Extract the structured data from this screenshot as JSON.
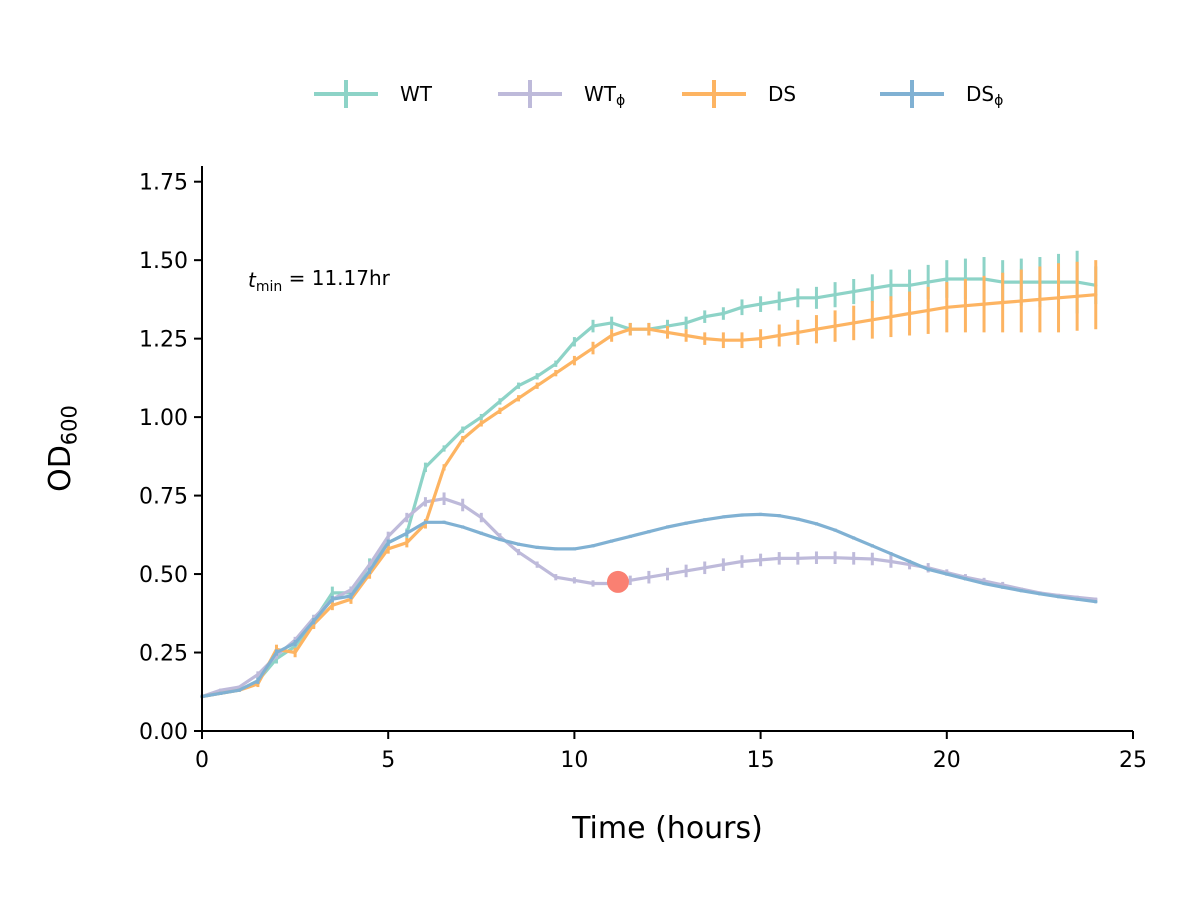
{
  "chart_data": {
    "type": "line",
    "xlabel": "Time (hours)",
    "ylabel": "OD",
    "ylabel_sub": "600",
    "xlim": [
      0,
      25
    ],
    "ylim": [
      0,
      1.8
    ],
    "xticks": [
      0,
      5,
      10,
      15,
      20,
      25
    ],
    "yticks": [
      0.0,
      0.25,
      0.5,
      0.75,
      1.0,
      1.25,
      1.5,
      1.75
    ],
    "xtick_labels": [
      "0",
      "5",
      "10",
      "15",
      "20",
      "25"
    ],
    "ytick_labels": [
      "0.00",
      "0.25",
      "0.50",
      "0.75",
      "1.00",
      "1.25",
      "1.50",
      "1.75"
    ],
    "grid": false,
    "legend_position": "top-center",
    "annotation": {
      "t": "t",
      "sub": "min",
      "rest": " = 11.17hr"
    },
    "marker": {
      "x": 11.17,
      "y": 0.475,
      "color": "#fa8072"
    },
    "series": [
      {
        "name": "WT",
        "sub": "",
        "color": "#8dd3c7",
        "x": [
          0,
          0.5,
          1,
          1.5,
          2,
          2.5,
          3,
          3.5,
          4,
          4.5,
          5,
          5.5,
          6,
          6.5,
          7,
          7.5,
          8,
          8.5,
          9,
          9.5,
          10,
          10.5,
          11,
          11.5,
          12,
          12.5,
          13,
          13.5,
          14,
          14.5,
          15,
          15.5,
          16,
          16.5,
          17,
          17.5,
          18,
          18.5,
          19,
          19.5,
          20,
          20.5,
          21,
          21.5,
          22,
          22.5,
          23,
          23.5,
          24
        ],
        "y": [
          0.11,
          0.12,
          0.13,
          0.16,
          0.23,
          0.27,
          0.35,
          0.44,
          0.44,
          0.53,
          0.6,
          0.63,
          0.84,
          0.9,
          0.96,
          1.0,
          1.05,
          1.1,
          1.13,
          1.17,
          1.24,
          1.29,
          1.3,
          1.28,
          1.28,
          1.29,
          1.3,
          1.32,
          1.33,
          1.35,
          1.36,
          1.37,
          1.38,
          1.38,
          1.39,
          1.4,
          1.41,
          1.42,
          1.42,
          1.43,
          1.44,
          1.44,
          1.44,
          1.43,
          1.43,
          1.43,
          1.43,
          1.43,
          1.42
        ],
        "err": [
          0.005,
          0.005,
          0.005,
          0.01,
          0.015,
          0.015,
          0.02,
          0.02,
          0.02,
          0.02,
          0.015,
          0.015,
          0.015,
          0.01,
          0.01,
          0.01,
          0.01,
          0.01,
          0.01,
          0.01,
          0.015,
          0.02,
          0.02,
          0.02,
          0.02,
          0.02,
          0.02,
          0.02,
          0.02,
          0.025,
          0.025,
          0.03,
          0.03,
          0.035,
          0.04,
          0.04,
          0.045,
          0.05,
          0.05,
          0.055,
          0.06,
          0.065,
          0.07,
          0.07,
          0.075,
          0.08,
          0.09,
          0.1,
          0.06
        ]
      },
      {
        "name": "WT",
        "sub": "ϕ",
        "color": "#bebada",
        "x": [
          0,
          0.5,
          1,
          1.5,
          2,
          2.5,
          3,
          3.5,
          4,
          4.5,
          5,
          5.5,
          6,
          6.5,
          7,
          7.5,
          8,
          8.5,
          9,
          9.5,
          10,
          10.5,
          11,
          11.5,
          12,
          12.5,
          13,
          13.5,
          14,
          14.5,
          15,
          15.5,
          16,
          16.5,
          17,
          17.5,
          18,
          18.5,
          19,
          19.5,
          20,
          20.5,
          21,
          21.5,
          22,
          22.5,
          23,
          23.5,
          24
        ],
        "y": [
          0.11,
          0.13,
          0.14,
          0.18,
          0.24,
          0.29,
          0.36,
          0.42,
          0.45,
          0.53,
          0.62,
          0.68,
          0.73,
          0.74,
          0.72,
          0.68,
          0.62,
          0.57,
          0.53,
          0.49,
          0.48,
          0.47,
          0.47,
          0.48,
          0.49,
          0.5,
          0.51,
          0.52,
          0.53,
          0.54,
          0.545,
          0.55,
          0.55,
          0.552,
          0.552,
          0.55,
          0.548,
          0.54,
          0.53,
          0.52,
          0.505,
          0.49,
          0.478,
          0.465,
          0.452,
          0.44,
          0.432,
          0.426,
          0.42
        ],
        "err": [
          0.005,
          0.005,
          0.005,
          0.01,
          0.01,
          0.01,
          0.01,
          0.01,
          0.01,
          0.01,
          0.015,
          0.015,
          0.015,
          0.02,
          0.02,
          0.015,
          0.01,
          0.01,
          0.01,
          0.01,
          0.01,
          0.01,
          0.015,
          0.015,
          0.02,
          0.02,
          0.02,
          0.02,
          0.02,
          0.02,
          0.02,
          0.02,
          0.02,
          0.02,
          0.02,
          0.02,
          0.02,
          0.02,
          0.015,
          0.015,
          0.01,
          0.01,
          0.01,
          0.01,
          0.005,
          0.005,
          0.005,
          0.005,
          0.005
        ]
      },
      {
        "name": "DS",
        "sub": "",
        "color": "#fdb462",
        "x": [
          0,
          0.5,
          1,
          1.5,
          2,
          2.5,
          3,
          3.5,
          4,
          4.5,
          5,
          5.5,
          6,
          6.5,
          7,
          7.5,
          8,
          8.5,
          9,
          9.5,
          10,
          10.5,
          11,
          11.5,
          12,
          12.5,
          13,
          13.5,
          14,
          14.5,
          15,
          15.5,
          16,
          16.5,
          17,
          17.5,
          18,
          18.5,
          19,
          19.5,
          20,
          20.5,
          21,
          21.5,
          22,
          22.5,
          23,
          23.5,
          24
        ],
        "y": [
          0.11,
          0.12,
          0.13,
          0.15,
          0.26,
          0.25,
          0.34,
          0.4,
          0.42,
          0.5,
          0.58,
          0.6,
          0.66,
          0.84,
          0.93,
          0.98,
          1.02,
          1.06,
          1.1,
          1.14,
          1.18,
          1.22,
          1.26,
          1.28,
          1.28,
          1.27,
          1.26,
          1.25,
          1.245,
          1.245,
          1.25,
          1.26,
          1.27,
          1.28,
          1.29,
          1.3,
          1.31,
          1.32,
          1.33,
          1.34,
          1.35,
          1.355,
          1.36,
          1.365,
          1.37,
          1.375,
          1.38,
          1.385,
          1.39
        ],
        "err": [
          0.005,
          0.005,
          0.005,
          0.01,
          0.015,
          0.015,
          0.015,
          0.015,
          0.015,
          0.015,
          0.015,
          0.015,
          0.015,
          0.01,
          0.01,
          0.01,
          0.01,
          0.01,
          0.01,
          0.01,
          0.015,
          0.02,
          0.02,
          0.02,
          0.02,
          0.02,
          0.02,
          0.02,
          0.025,
          0.025,
          0.03,
          0.035,
          0.04,
          0.045,
          0.05,
          0.055,
          0.06,
          0.065,
          0.07,
          0.075,
          0.08,
          0.085,
          0.09,
          0.095,
          0.1,
          0.105,
          0.11,
          0.11,
          0.11
        ]
      },
      {
        "name": "DS",
        "sub": "ϕ",
        "color": "#80b1d3",
        "x": [
          0,
          0.5,
          1,
          1.5,
          2,
          2.5,
          3,
          3.5,
          4,
          4.5,
          5,
          5.5,
          6,
          6.5,
          7,
          7.5,
          8,
          8.5,
          9,
          9.5,
          10,
          10.5,
          11,
          11.5,
          12,
          12.5,
          13,
          13.5,
          14,
          14.5,
          15,
          15.5,
          16,
          16.5,
          17,
          17.5,
          18,
          18.5,
          19,
          19.5,
          20,
          20.5,
          21,
          21.5,
          22,
          22.5,
          23,
          23.5,
          24
        ],
        "y": [
          0.11,
          0.12,
          0.13,
          0.16,
          0.25,
          0.28,
          0.35,
          0.42,
          0.43,
          0.51,
          0.6,
          0.63,
          0.665,
          0.665,
          0.65,
          0.63,
          0.61,
          0.595,
          0.585,
          0.58,
          0.58,
          0.59,
          0.605,
          0.62,
          0.635,
          0.65,
          0.662,
          0.673,
          0.682,
          0.688,
          0.69,
          0.686,
          0.675,
          0.66,
          0.64,
          0.615,
          0.59,
          0.565,
          0.54,
          0.515,
          0.5,
          0.485,
          0.47,
          0.458,
          0.447,
          0.437,
          0.428,
          0.42,
          0.412
        ],
        "err": [
          0.005,
          0.005,
          0.005,
          0.01,
          0.01,
          0.01,
          0.01,
          0.01,
          0.01,
          0.01,
          0.01,
          0.01,
          0.005,
          0.005,
          0.005,
          0.005,
          0.005,
          0.005,
          0.005,
          0.005,
          0.005,
          0.005,
          0.005,
          0.005,
          0.005,
          0.005,
          0.005,
          0.005,
          0.005,
          0.005,
          0.005,
          0.005,
          0.005,
          0.005,
          0.005,
          0.005,
          0.005,
          0.005,
          0.005,
          0.005,
          0.005,
          0.005,
          0.005,
          0.005,
          0.005,
          0.005,
          0.005,
          0.005,
          0.005
        ]
      }
    ]
  }
}
